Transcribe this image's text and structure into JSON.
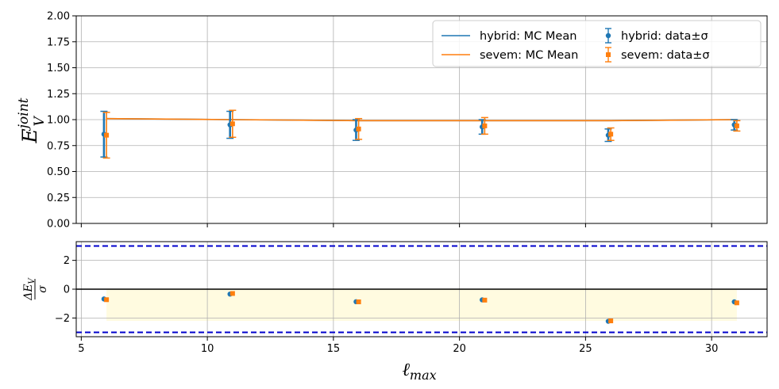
{
  "chart_data": [
    {
      "panel": "top",
      "type": "scatter",
      "xlabel": "ℓ_max",
      "ylabel": "E_V^joint",
      "xlim": [
        4.8,
        32.2
      ],
      "ylim": [
        0,
        2.0
      ],
      "x_ticks": [
        5,
        10,
        15,
        20,
        25,
        30
      ],
      "y_ticks": [
        "0.00",
        "0.25",
        "0.50",
        "0.75",
        "1.00",
        "1.25",
        "1.50",
        "1.75",
        "2.00"
      ],
      "grid": true,
      "legend_position": "top-right",
      "series": [
        {
          "name": "hybrid: MC Mean",
          "kind": "line",
          "color": "#1f77b4",
          "x": [
            6,
            11,
            16,
            21,
            26,
            31
          ],
          "y": [
            1.01,
            1.0,
            0.99,
            0.99,
            0.99,
            1.0
          ]
        },
        {
          "name": "sevem: MC Mean",
          "kind": "line",
          "color": "#ff7f0e",
          "x": [
            6,
            11,
            16,
            21,
            26,
            31
          ],
          "y": [
            1.01,
            1.0,
            0.99,
            0.99,
            0.99,
            1.0
          ]
        },
        {
          "name": "hybrid: data±σ",
          "kind": "errorbar",
          "color": "#1f77b4",
          "x": [
            5.9,
            10.9,
            15.9,
            20.9,
            25.9,
            30.9
          ],
          "y": [
            0.86,
            0.95,
            0.9,
            0.93,
            0.85,
            0.95
          ],
          "err": [
            0.22,
            0.13,
            0.1,
            0.07,
            0.06,
            0.05
          ]
        },
        {
          "name": "sevem: data±σ",
          "kind": "errorbar",
          "color": "#ff7f0e",
          "marker": "square",
          "x": [
            6.0,
            11.0,
            16.0,
            21.0,
            26.0,
            31.0
          ],
          "y": [
            0.85,
            0.96,
            0.91,
            0.94,
            0.86,
            0.94
          ],
          "err": [
            0.22,
            0.13,
            0.1,
            0.08,
            0.06,
            0.05
          ]
        }
      ]
    },
    {
      "panel": "bottom",
      "type": "scatter",
      "xlabel": "ℓ_max",
      "ylabel": "ΔE_V / σ",
      "xlim": [
        4.8,
        32.2
      ],
      "ylim": [
        -3.3,
        3.3
      ],
      "x_ticks": [
        5,
        10,
        15,
        20,
        25,
        30
      ],
      "y_ticks": [
        "−2",
        "0",
        "2"
      ],
      "y_tick_values": [
        -2,
        0,
        2
      ],
      "grid": true,
      "reference_lines": [
        {
          "y": 3,
          "style": "dashed",
          "color": "#0000cc"
        },
        {
          "y": -3,
          "style": "dashed",
          "color": "#0000cc"
        },
        {
          "y": 0,
          "style": "solid",
          "color": "#000000"
        }
      ],
      "shaded_band": {
        "x_from": 6,
        "x_to": 31,
        "y_from": -2.2,
        "y_to": 0,
        "color": "#fffbe0"
      },
      "series": [
        {
          "name": "hybrid",
          "color": "#1f77b4",
          "x": [
            5.9,
            10.9,
            15.9,
            20.9,
            25.9,
            30.9
          ],
          "y": [
            -0.68,
            -0.34,
            -0.87,
            -0.74,
            -2.23,
            -0.88
          ]
        },
        {
          "name": "sevem",
          "color": "#ff7f0e",
          "marker": "square",
          "x": [
            6.0,
            11.0,
            16.0,
            21.0,
            26.0,
            31.0
          ],
          "y": [
            -0.73,
            -0.3,
            -0.88,
            -0.76,
            -2.2,
            -0.95
          ]
        }
      ]
    }
  ]
}
